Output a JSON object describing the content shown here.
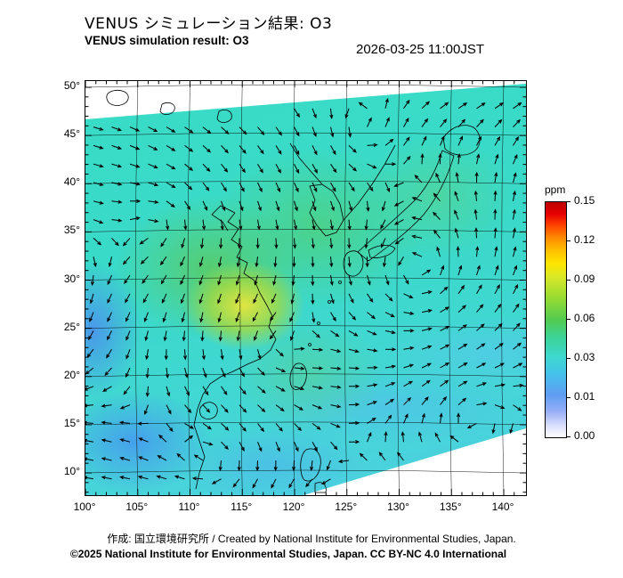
{
  "header": {
    "title_jp": "VENUS シミュレーション結果: O3",
    "title_en": "VENUS simulation result: O3",
    "datetime": "2026-03-25 11:00JST"
  },
  "map": {
    "lat_ticks": [
      "50°",
      "45°",
      "40°",
      "35°",
      "30°",
      "25°",
      "20°",
      "15°",
      "10°"
    ],
    "lon_ticks": [
      "100°",
      "105°",
      "110°",
      "115°",
      "120°",
      "125°",
      "130°",
      "135°",
      "140°"
    ]
  },
  "colorbar": {
    "unit": "ppm",
    "labels": [
      "0.15",
      "0.12",
      "0.09",
      "0.06",
      "0.03",
      "0.01",
      "0.00"
    ]
  },
  "footer": {
    "credit": "作成: 国立環境研究所 / Created by National Institute for Environmental Studies, Japan.",
    "copyright": "©2025 National Institute for Environmental Studies, Japan. CC BY-NC 4.0 International"
  },
  "chart_data": {
    "type": "heatmap",
    "title": "VENUS simulation result: O3",
    "datetime": "2026-03-25 11:00JST",
    "unit": "ppm",
    "lon_range": [
      100,
      140
    ],
    "lat_range": [
      10,
      50
    ],
    "lon_tick_step_deg": 5,
    "lat_tick_step_deg": 5,
    "colorbar_values": [
      0.15,
      0.12,
      0.09,
      0.06,
      0.03,
      0.01,
      0.0
    ],
    "colorbar_colors_top_to_bottom": [
      "#e60000",
      "#ff8800",
      "#ffe600",
      "#9cdc30",
      "#52cb50",
      "#3fd8d0",
      "#5f9df2",
      "#ffffff"
    ],
    "field_summary": "O3 concentration field over East Asia: mostly 0.03-0.06 ppm (cyan/turquoise); broad green maxima ~0.06-0.09 ppm over central/eastern China; small yellow peak ~0.11 ppm near 115E 27N; blue minima ~0.01-0.03 ppm along the western edge, lower-left and lower-middle bands; tilted data swath with white no-data corners at upper-left and lower-right; black wind-vector arrows overlaid with a large cyclonic swirl near 130E 30N"
  }
}
